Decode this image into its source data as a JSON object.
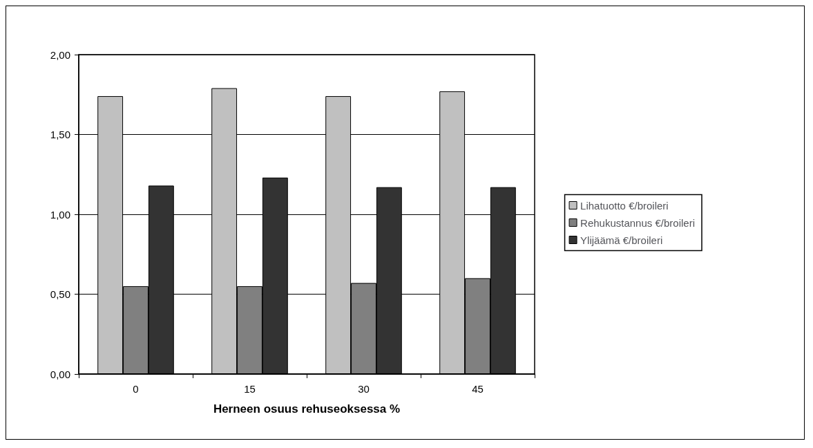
{
  "chart_data": {
    "type": "bar",
    "xlabel": "Herneen osuus rehuseoksessa %",
    "categories": [
      "0",
      "15",
      "30",
      "45"
    ],
    "series": [
      {
        "name": "Lihatuotto €/broileri",
        "color": "#c0c0c0",
        "values": [
          1.74,
          1.79,
          1.74,
          1.77
        ]
      },
      {
        "name": "Rehukustannus €/broileri",
        "color": "#808080",
        "values": [
          0.55,
          0.55,
          0.57,
          0.6
        ]
      },
      {
        "name": "Ylijäämä €/broileri",
        "color": "#333333",
        "values": [
          1.18,
          1.23,
          1.17,
          1.17
        ]
      }
    ],
    "ylim": [
      0,
      2
    ],
    "yticks": [
      {
        "value": 0,
        "label": "0,00"
      },
      {
        "value": 0.5,
        "label": "0,50"
      },
      {
        "value": 1,
        "label": "1,00"
      },
      {
        "value": 1.5,
        "label": "1,50"
      },
      {
        "value": 2,
        "label": "2,00"
      }
    ],
    "grid": "y",
    "legend": "right"
  }
}
